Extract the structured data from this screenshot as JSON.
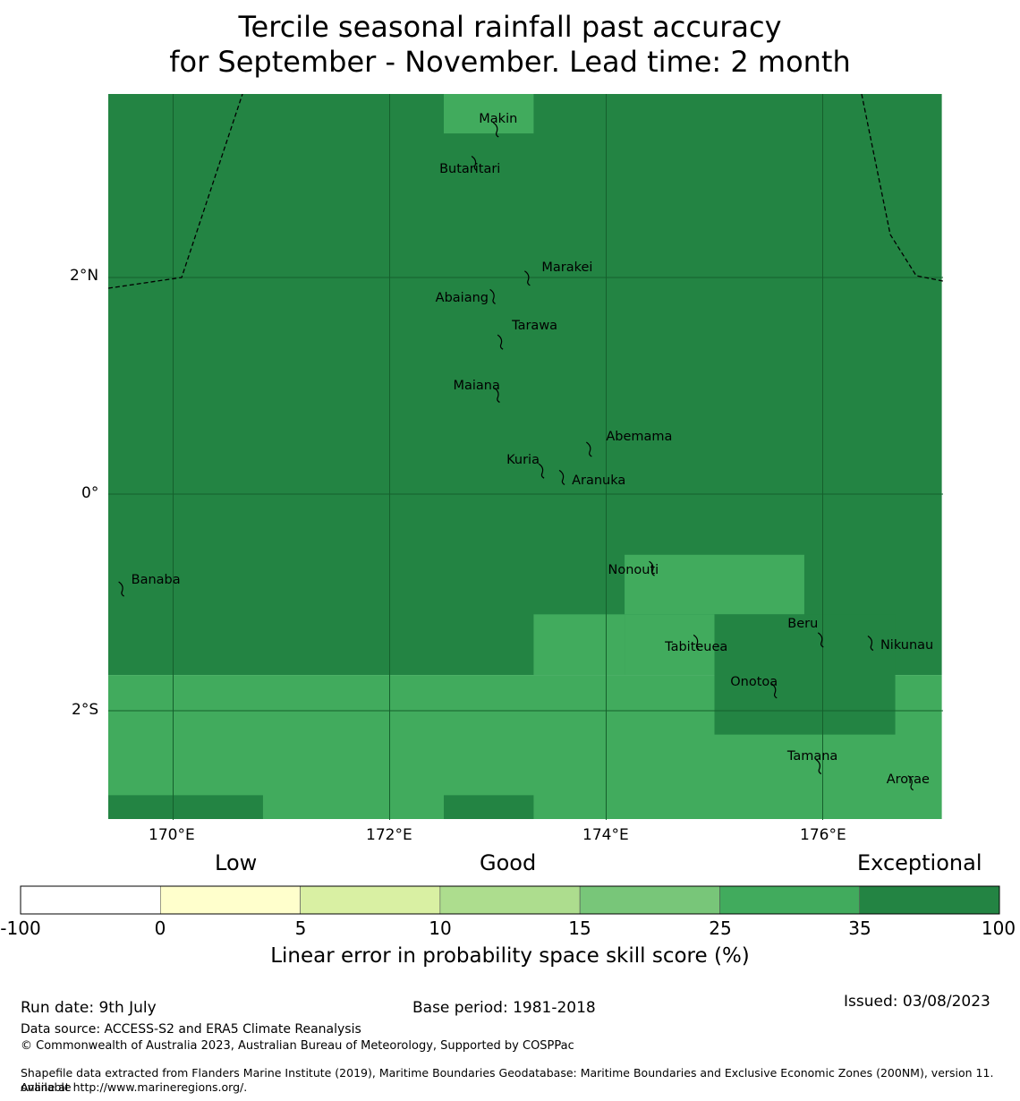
{
  "title": {
    "line1": "Tercile seasonal rainfall past accuracy",
    "line2": "for September - November. Lead time: 2 month"
  },
  "map": {
    "lat_labels": [
      "2°N",
      "0°",
      "2°S"
    ],
    "lon_labels": [
      "170°E",
      "172°E",
      "174°E",
      "176°E"
    ],
    "islands": [
      {
        "name": "Makin",
        "lon": 172.99,
        "lat": 3.38
      },
      {
        "name": "Butaritari",
        "lon": 172.79,
        "lat": 3.07
      },
      {
        "name": "Marakei",
        "lon": 173.28,
        "lat": 2.01
      },
      {
        "name": "Abaiang",
        "lon": 172.96,
        "lat": 1.84
      },
      {
        "name": "Tarawa",
        "lon": 173.03,
        "lat": 1.42
      },
      {
        "name": "Maiana",
        "lon": 173.0,
        "lat": 0.93
      },
      {
        "name": "Abemama",
        "lon": 173.85,
        "lat": 0.43
      },
      {
        "name": "Kuria",
        "lon": 173.41,
        "lat": 0.23
      },
      {
        "name": "Aranuka",
        "lon": 173.6,
        "lat": 0.17
      },
      {
        "name": "Nonouti",
        "lon": 174.43,
        "lat": -0.67
      },
      {
        "name": "Banaba",
        "lon": 169.53,
        "lat": -0.86
      },
      {
        "name": "Beru",
        "lon": 175.99,
        "lat": -1.33
      },
      {
        "name": "Tabiteuea",
        "lon": 174.84,
        "lat": -1.35
      },
      {
        "name": "Nikunau",
        "lon": 176.45,
        "lat": -1.36
      },
      {
        "name": "Onotoa",
        "lon": 175.56,
        "lat": -1.8
      },
      {
        "name": "Tamana",
        "lon": 175.97,
        "lat": -2.5
      },
      {
        "name": "Arorae",
        "lon": 176.82,
        "lat": -2.65
      }
    ]
  },
  "skill_classes": {
    "cells": [
      {
        "lon_range": [
          169.4,
          177.1
        ],
        "lat_range": [
          -1.67,
          3.7
        ],
        "class": "35-100"
      },
      {
        "lon_range": [
          172.5,
          173.33
        ],
        "lat_range": [
          3.33,
          3.7
        ],
        "class": "25-35"
      },
      {
        "lon_range": [
          173.33,
          174.17
        ],
        "lat_range": [
          -1.67,
          -1.11
        ],
        "class": "25-35"
      },
      {
        "lon_range": [
          174.17,
          175.83
        ],
        "lat_range": [
          -1.11,
          -0.56
        ],
        "class": "25-35"
      },
      {
        "lon_range": [
          174.17,
          175.0
        ],
        "lat_range": [
          -1.67,
          -1.11
        ],
        "class": "25-35"
      },
      {
        "lon_range": [
          169.4,
          177.1
        ],
        "lat_range": [
          -3.0,
          -1.67
        ],
        "class": "25-35"
      },
      {
        "lon_range": [
          175.0,
          176.67
        ],
        "lat_range": [
          -2.22,
          -1.11
        ],
        "class": "35-100"
      },
      {
        "lon_range": [
          169.4,
          170.83
        ],
        "lat_range": [
          -3.0,
          -2.78
        ],
        "class": "35-100"
      },
      {
        "lon_range": [
          172.5,
          173.33
        ],
        "lat_range": [
          -3.0,
          -2.78
        ],
        "class": "35-100"
      }
    ]
  },
  "colorbar": {
    "category_labels": [
      "Low",
      "Good",
      "Exceptional"
    ],
    "ticks": [
      "-100",
      "0",
      "5",
      "10",
      "15",
      "25",
      "35",
      "100"
    ],
    "colors": [
      "#ffffff",
      "#ffffcc",
      "#d9f0a3",
      "#addd8e",
      "#78c679",
      "#41ab5d",
      "#238443"
    ],
    "label": "Linear error in probability space skill score (%)"
  },
  "footer": {
    "run_date": "Run date: 9th July",
    "base_period": "Base period: 1981-2018",
    "issued": "Issued: 03/08/2023",
    "data_source": "Data source: ACCESS-S2 and ERA5 Climate Reanalysis",
    "copyright": "© Commonwealth of Australia 2023, Australian Bureau of Meteorology, Supported by COSPPac",
    "shapefile_line1": "Shapefile data extracted from Flanders Marine Institute (2019), Maritime Boundaries Geodatabase: Maritime Boundaries and Exclusive Economic Zones (200NM), version 11. Available",
    "shapefile_line2": "online at http://www.marineregions.org/."
  }
}
